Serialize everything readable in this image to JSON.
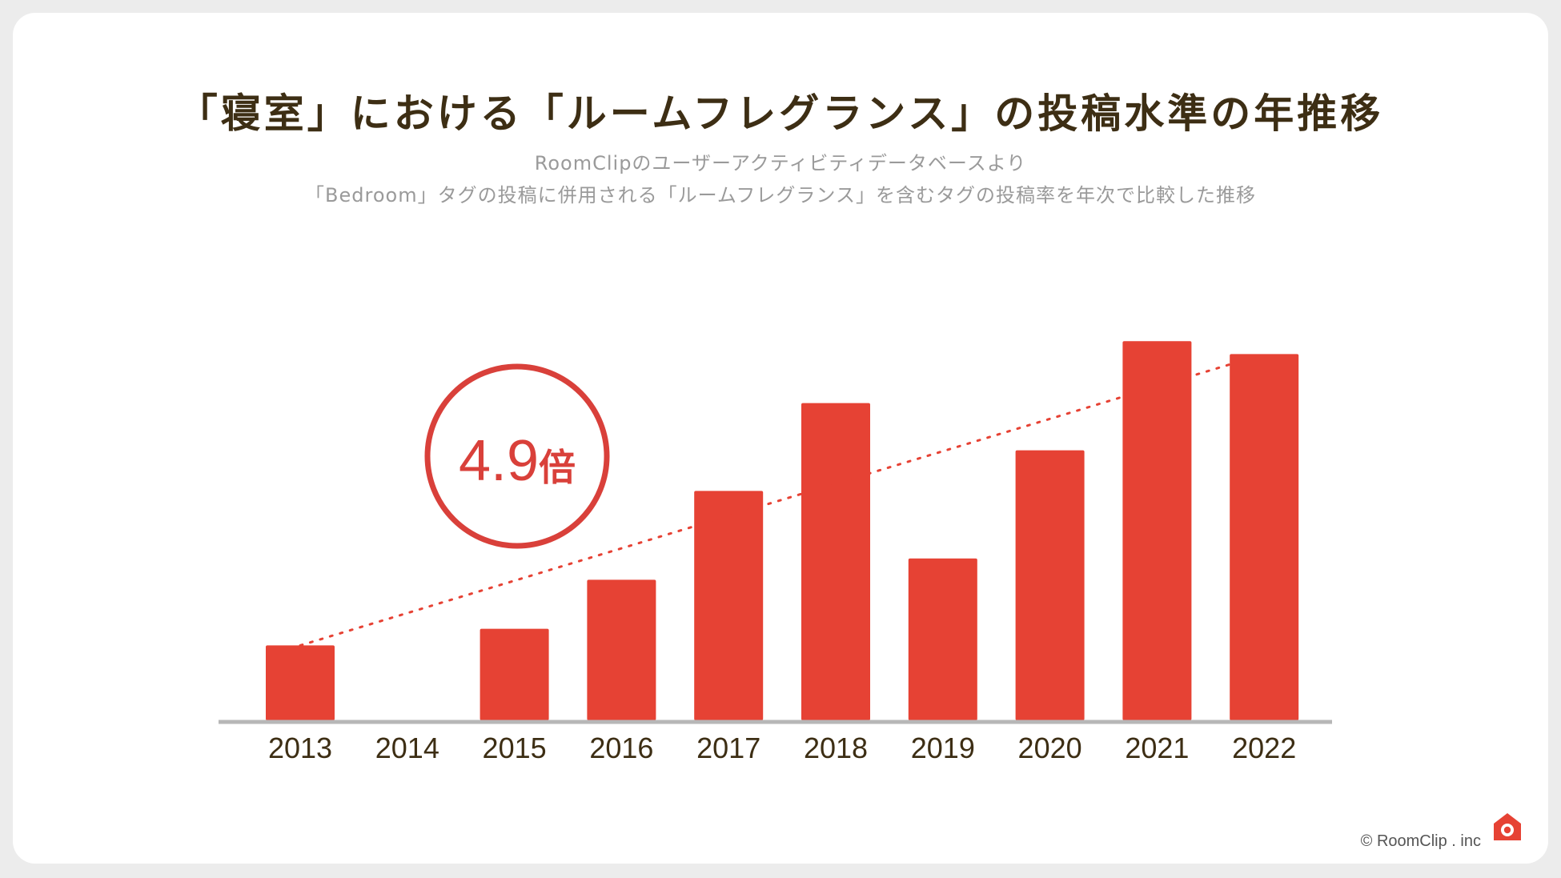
{
  "title": "「寝室」における「ルームフレグランス」の投稿水準の年推移",
  "subtitle_line1": "RoomClipのユーザーアクティビティデータベースより",
  "subtitle_line2": "「Bedroom」タグの投稿に併用される「ルームフレグランス」を含むタグの投稿率を年次で比較した推移",
  "credit": "© RoomClip . inc",
  "colors": {
    "bar": "#e64234",
    "axis": "#b7b7b7",
    "badge": "#d9403a",
    "title": "#3d2e14"
  },
  "chart_data": {
    "type": "bar",
    "categories": [
      "2013",
      "2014",
      "2015",
      "2016",
      "2017",
      "2018",
      "2019",
      "2020",
      "2021",
      "2022"
    ],
    "values": [
      8.1,
      0,
      9.9,
      15.2,
      24.8,
      34.3,
      17.5,
      29.2,
      41.0,
      39.6
    ],
    "ylim": [
      0,
      45
    ],
    "trendline": {
      "from": "2013",
      "to": "2022",
      "style": "dotted"
    },
    "annotation": {
      "value": "4.9",
      "unit": "倍"
    },
    "grid": false,
    "xlabel": "",
    "ylabel": ""
  }
}
